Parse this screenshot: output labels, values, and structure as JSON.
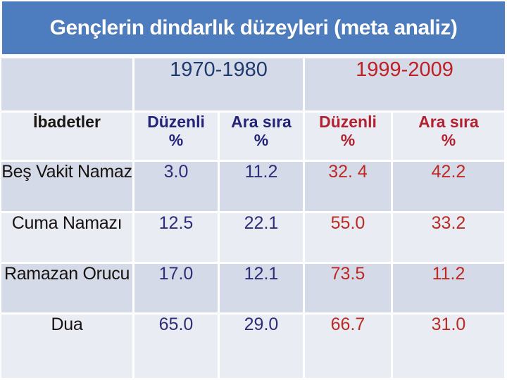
{
  "slide": {
    "title": "Gençlerin dindarlık düzeyleri (meta analiz)"
  },
  "table": {
    "period_groups": [
      {
        "label": "1970-1980"
      },
      {
        "label": "1999-2009"
      }
    ],
    "columns": {
      "practices_header": "İbadetler",
      "group1": [
        {
          "label": "Düzenli",
          "unit": "%"
        },
        {
          "label": "Ara sıra",
          "unit": "%"
        }
      ],
      "group2": [
        {
          "label": "Düzenli",
          "unit": "%"
        },
        {
          "label": "Ara sıra",
          "unit": "%"
        }
      ]
    },
    "rows": [
      {
        "label": "Beş Vakit Namaz",
        "values": [
          "3.0",
          "11.2",
          "32. 4",
          "42.2"
        ]
      },
      {
        "label": "Cuma Namazı",
        "values": [
          "12.5",
          "22.1",
          "55.0",
          "33.2"
        ]
      },
      {
        "label": "Ramazan Orucu",
        "values": [
          "17.0",
          "12.1",
          "73.5",
          "11.2"
        ]
      },
      {
        "label": "Dua",
        "values": [
          "65.0",
          "29.0",
          "66.7",
          "31.0"
        ]
      }
    ]
  },
  "colors": {
    "title_bar_blue": "#4d7dbe",
    "band_dark": "#d4dae7",
    "band_light": "#e9ecf3",
    "period1_navy": "#1f3a6e",
    "period2_red": "#c01f23",
    "values_navy": "#2e2e78",
    "values_red": "#bd2a24",
    "label_black": "#181210",
    "title_text_white": "#ffffff"
  }
}
